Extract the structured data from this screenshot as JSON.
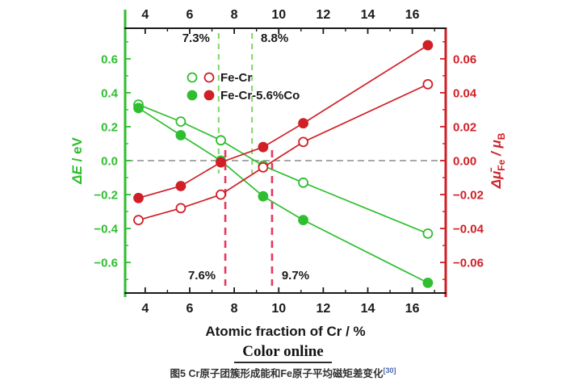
{
  "chart_data": {
    "type": "line",
    "title": "",
    "xlabel": "Atomic fraction of Cr / %",
    "ylabel_left_text": "ΔE / eV",
    "ylabel_right_text": "Δμ̄Fe / μB",
    "ylabel_left_parts": [
      {
        "text": "ΔE",
        "italic": true,
        "sub": false
      },
      {
        "text": " / eV",
        "italic": false,
        "sub": false
      }
    ],
    "ylabel_right_parts": [
      {
        "text": "Δμ̄",
        "italic": true,
        "sub": false
      },
      {
        "text": "Fe",
        "italic": false,
        "sub": true
      },
      {
        "text": " / μ",
        "italic": true,
        "sub": false
      },
      {
        "text": "B",
        "italic": false,
        "sub": true
      }
    ],
    "xlim": [
      3.1,
      17.5
    ],
    "ylim_left": [
      -0.78,
      0.78
    ],
    "ylim_right": [
      -0.078,
      0.078
    ],
    "x_ticks": [
      4,
      6,
      8,
      10,
      12,
      14,
      16
    ],
    "x_minor_ticks": [
      5,
      7,
      9,
      11,
      13,
      15,
      17
    ],
    "y_ticks_left": [
      -0.6,
      -0.4,
      -0.2,
      0.0,
      0.2,
      0.4,
      0.6
    ],
    "y_ticks_right": [
      -0.06,
      -0.04,
      -0.02,
      0.0,
      0.02,
      0.04,
      0.06
    ],
    "x": [
      3.7,
      5.6,
      7.4,
      9.3,
      11.1,
      16.7
    ],
    "series": [
      {
        "name": "Fe-Cr deltaE",
        "axis": "left",
        "marker": "open",
        "values": [
          0.33,
          0.23,
          0.12,
          -0.03,
          -0.13,
          -0.43
        ]
      },
      {
        "name": "Fe-Cr-5.6%Co deltaE",
        "axis": "left",
        "marker": "filled",
        "values": [
          0.31,
          0.15,
          0.0,
          -0.21,
          -0.35,
          -0.72
        ]
      },
      {
        "name": "Fe-Cr deltaMu",
        "axis": "right",
        "marker": "open",
        "values": [
          -0.035,
          -0.028,
          -0.02,
          -0.004,
          0.011,
          0.045
        ]
      },
      {
        "name": "Fe-Cr-5.6%Co deltaMu",
        "axis": "right",
        "marker": "filled",
        "values": [
          -0.022,
          -0.015,
          -0.001,
          0.008,
          0.022,
          0.068
        ]
      }
    ],
    "legend": [
      {
        "label": "Fe-Cr",
        "marker": "open"
      },
      {
        "label": "Fe-Cr-5.6%Co",
        "marker": "filled"
      }
    ],
    "annotations": {
      "green_lines": [
        {
          "x": 7.3,
          "label": "7.3%",
          "label_side": "left"
        },
        {
          "x": 8.8,
          "label": "8.8%",
          "label_side": "right"
        }
      ],
      "red_lines": [
        {
          "x": 7.6,
          "label": "7.6%",
          "label_side": "left"
        },
        {
          "x": 9.7,
          "label": "9.7%",
          "label_side": "right"
        }
      ]
    },
    "zero_line": true,
    "legend_position": "upper-left-inside",
    "grid": false,
    "colors": {
      "green": "#2fbe2f",
      "red": "#d01f26",
      "green_dash": "#7fd763",
      "red_dash": "#e8375f",
      "zero_line": "#8c8c8c",
      "black": "#1a1a1a"
    }
  },
  "caption": {
    "color_online": "Color online",
    "figure_label": "图5",
    "figure_caption": "Cr原子团簇形成能和Fe原子平均磁矩差变化",
    "reference": "[30]"
  }
}
